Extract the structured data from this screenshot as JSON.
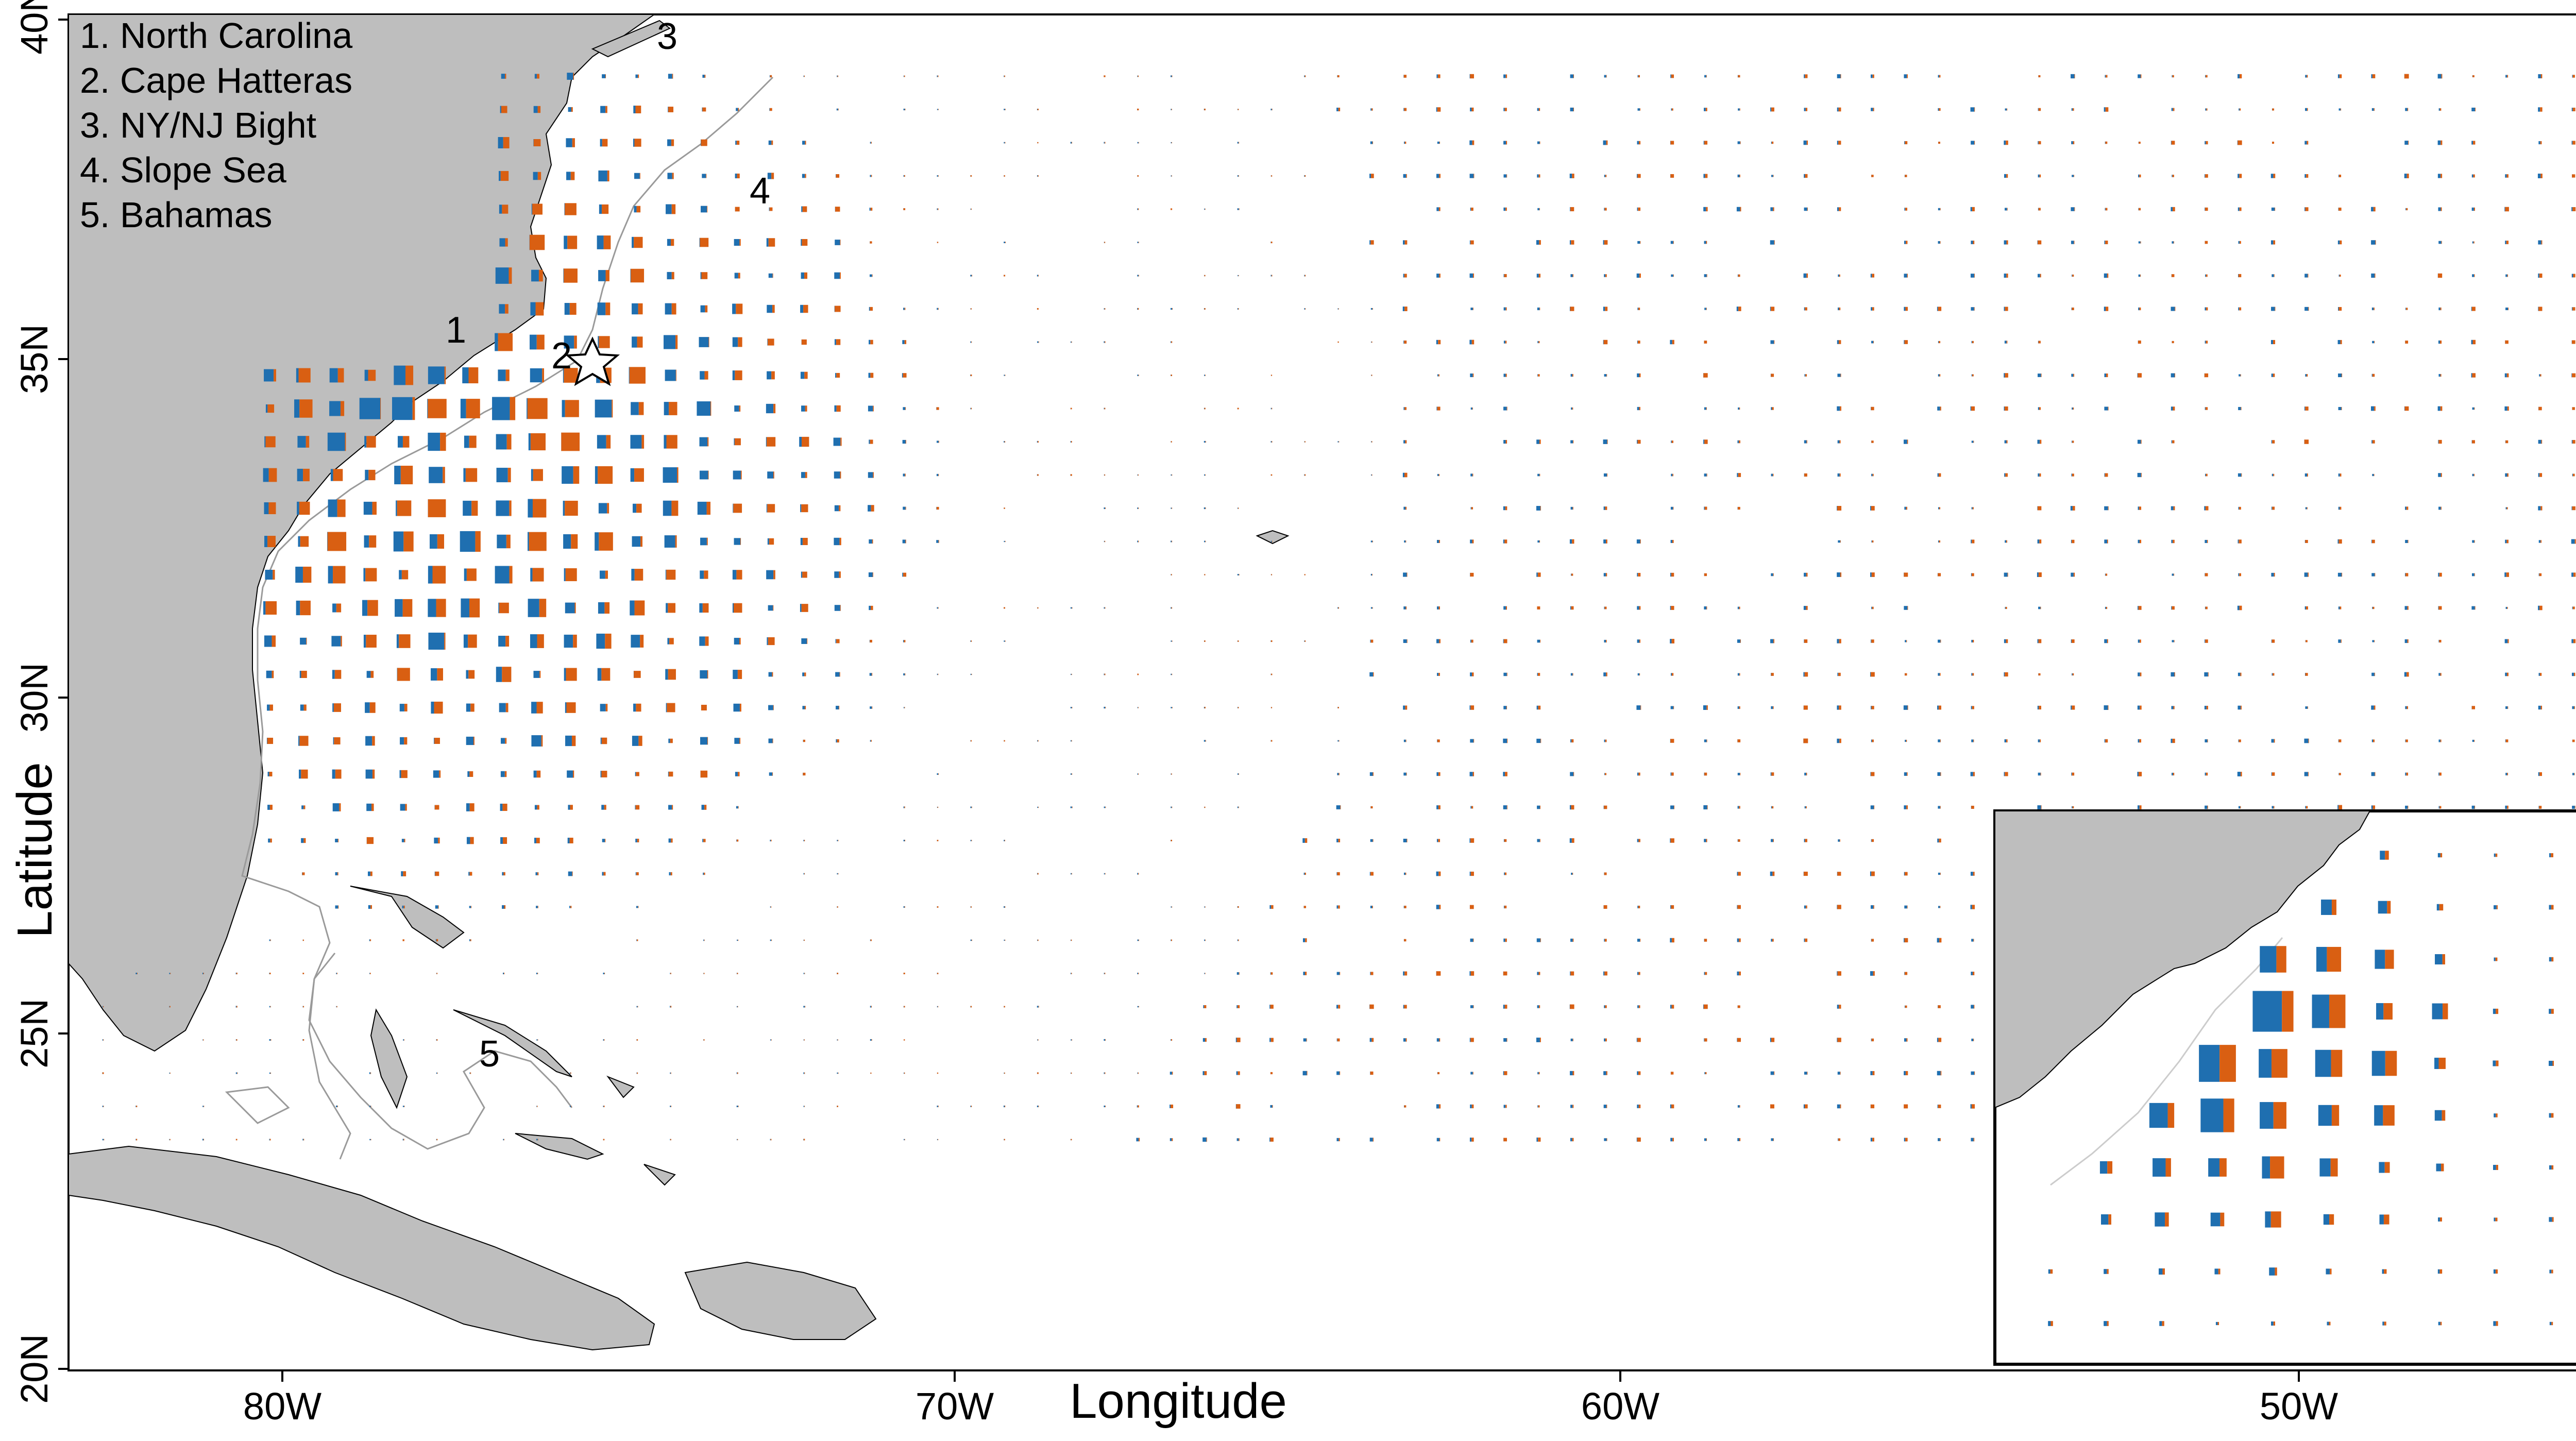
{
  "figure": {
    "xlabel": "Longitude",
    "ylabel": "Latitude",
    "x_ticks": [
      "80W",
      "70W",
      "60W",
      "50W"
    ],
    "y_ticks": [
      "40N",
      "35N",
      "30N",
      "25N",
      "20N"
    ],
    "legend_items": [
      "1. North Carolina",
      "2. Cape Hatteras",
      "3. NY/NJ Bight",
      "4. Slope Sea",
      "5. Bahamas"
    ],
    "map_labels": [
      "1",
      "2",
      "3",
      "4",
      "5"
    ],
    "colors": {
      "land": "#bebebe",
      "blue_series": "#1f6fb0",
      "orange_series": "#d95f12",
      "frame": "#000000",
      "contour": "#9a9a9a"
    },
    "extent": {
      "lon": [
        -83,
        -44
      ],
      "lat": [
        20,
        40
      ]
    },
    "star_marker": {
      "label": "2",
      "lon": -75.5,
      "lat": 35
    },
    "inset": {
      "present": true
    }
  },
  "icons": [
    "star-marker-icon"
  ]
}
